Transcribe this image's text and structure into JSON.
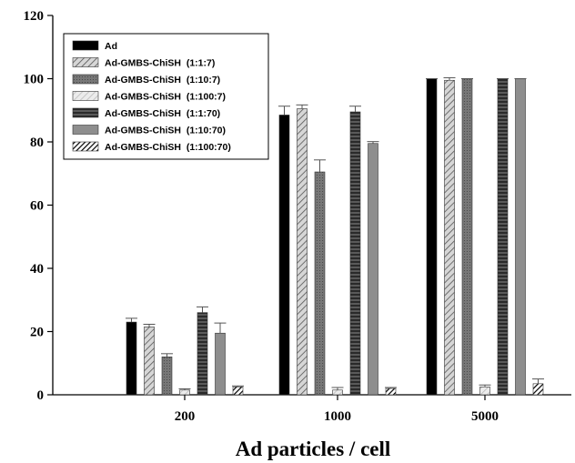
{
  "chart_data": {
    "type": "bar",
    "title": "",
    "xlabel": "Ad particles / cell",
    "ylabel": "",
    "ylim": [
      0,
      120
    ],
    "yticks": [
      0,
      20,
      40,
      60,
      80,
      100,
      120
    ],
    "grid": false,
    "legend_position": "top-left",
    "categories": [
      "200",
      "1000",
      "5000"
    ],
    "series": [
      {
        "name": "Ad",
        "values": [
          23,
          88.5,
          100
        ],
        "errors": [
          1.2,
          2.8,
          0
        ]
      },
      {
        "name": "Ad-GMBS-ChiSH  (1:1:7)",
        "values": [
          21.5,
          90.5,
          99.5
        ],
        "errors": [
          0.8,
          1.2,
          0.8
        ]
      },
      {
        "name": "Ad-GMBS-ChiSH  (1:10:7)",
        "values": [
          12,
          70.5,
          100
        ],
        "errors": [
          1.0,
          3.8,
          0
        ]
      },
      {
        "name": "Ad-GMBS-ChiSH  (1:100:7)",
        "values": [
          1.5,
          1.5,
          2.5
        ],
        "errors": [
          0.4,
          0.8,
          0.6
        ]
      },
      {
        "name": "Ad-GMBS-ChiSH  (1:1:70)",
        "values": [
          26,
          89.5,
          100
        ],
        "errors": [
          1.8,
          1.8,
          0
        ]
      },
      {
        "name": "Ad-GMBS-ChiSH  (1:10:70)",
        "values": [
          19.5,
          79.5,
          100
        ],
        "errors": [
          3.2,
          0.6,
          0
        ]
      },
      {
        "name": "Ad-GMBS-ChiSH  (1:100:70)",
        "values": [
          2.5,
          2,
          3.5
        ],
        "errors": [
          0.3,
          0.3,
          1.5
        ]
      }
    ],
    "series_styles": [
      {
        "fill": "#000000",
        "pattern": "solid"
      },
      {
        "fill": "#bdbdbd",
        "pattern": "diag-light"
      },
      {
        "fill": "#6e6e6e",
        "pattern": "dots"
      },
      {
        "fill": "#e2e2e2",
        "pattern": "diag-faint"
      },
      {
        "fill": "#3a3a3a",
        "pattern": "hstripes"
      },
      {
        "fill": "#8e8e8e",
        "pattern": "solid"
      },
      {
        "fill": "#000000",
        "pattern": "diag-bold"
      }
    ]
  }
}
